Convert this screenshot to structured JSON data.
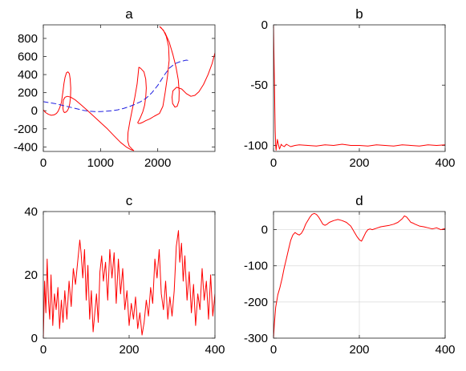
{
  "colors": {
    "red": "#ff0000",
    "blue": "#1f1fe0"
  },
  "chart_data": [
    {
      "type": "line",
      "title": "a",
      "xlim": [
        0,
        3000
      ],
      "ylim": [
        -450,
        950
      ],
      "xticks": [
        0,
        1000,
        2000
      ],
      "yticks": [
        -400,
        -200,
        0,
        200,
        400,
        600,
        800
      ],
      "grid": false,
      "series": [
        {
          "color": "red",
          "style": "solid",
          "x": [
            0,
            40,
            90,
            140,
            190,
            230,
            260,
            290,
            315,
            330,
            345,
            360,
            380,
            405,
            430,
            455,
            470,
            480,
            475,
            462,
            445,
            420,
            395,
            372,
            355,
            345,
            342,
            350,
            380,
            420,
            480,
            560,
            650,
            760,
            880,
            1000,
            1120,
            1240,
            1350,
            1450,
            1530,
            1580,
            1560,
            1500,
            1475,
            1480,
            1510,
            1550,
            1600,
            1640,
            1660,
            1670,
            1700,
            1760,
            1790,
            1800,
            1790,
            1770,
            1740,
            1700,
            1670,
            1650,
            1660,
            1690,
            1730,
            1790,
            1860,
            1940,
            2030,
            2090,
            2130,
            2170,
            2200,
            2190,
            2150,
            2100,
            2050,
            2035,
            2065,
            2130,
            2200,
            2265,
            2320,
            2360,
            2375,
            2370,
            2340,
            2300,
            2260,
            2250,
            2265,
            2330,
            2420,
            2500,
            2580,
            2650,
            2720,
            2800,
            2880,
            2950,
            3000
          ],
          "y": [
            10,
            -20,
            -40,
            -50,
            -45,
            -30,
            -5,
            40,
            90,
            150,
            220,
            300,
            370,
            420,
            430,
            410,
            350,
            250,
            150,
            80,
            30,
            0,
            -15,
            -20,
            -10,
            20,
            70,
            120,
            150,
            160,
            150,
            120,
            70,
            10,
            -60,
            -130,
            -200,
            -280,
            -350,
            -400,
            -430,
            -440,
            -430,
            -390,
            -330,
            -240,
            -130,
            0,
            150,
            300,
            420,
            480,
            470,
            430,
            350,
            250,
            150,
            60,
            -10,
            -70,
            -110,
            -130,
            -140,
            -140,
            -130,
            -110,
            -90,
            -60,
            -30,
            50,
            200,
            380,
            560,
            710,
            820,
            890,
            920,
            930,
            915,
            860,
            760,
            620,
            480,
            340,
            210,
            110,
            50,
            40,
            80,
            150,
            220,
            260,
            240,
            190,
            160,
            170,
            210,
            290,
            400,
            520,
            640
          ]
        },
        {
          "color": "blue",
          "style": "dashed",
          "x": [
            0,
            100,
            200,
            300,
            400,
            500,
            600,
            700,
            800,
            900,
            1000,
            1100,
            1200,
            1300,
            1400,
            1500,
            1600,
            1700,
            1800,
            1900,
            2000,
            2100,
            2200,
            2300,
            2400,
            2500,
            2550
          ],
          "y": [
            100,
            90,
            80,
            65,
            50,
            35,
            20,
            5,
            -5,
            -10,
            -10,
            -5,
            0,
            10,
            25,
            45,
            70,
            100,
            140,
            200,
            280,
            380,
            470,
            520,
            545,
            560,
            555
          ]
        }
      ]
    },
    {
      "type": "line",
      "title": "b",
      "xlim": [
        0,
        400
      ],
      "ylim": [
        -105,
        0
      ],
      "xticks": [
        0,
        200,
        400
      ],
      "yticks": [
        0,
        -50,
        -100
      ],
      "grid": false,
      "series": [
        {
          "color": "red",
          "style": "solid",
          "x": [
            0,
            1,
            2,
            3,
            4,
            5,
            6,
            7,
            8,
            9,
            10,
            12,
            14,
            16,
            18,
            20,
            25,
            30,
            35,
            40,
            50,
            60,
            80,
            100,
            120,
            140,
            160,
            180,
            200,
            220,
            240,
            260,
            280,
            300,
            320,
            340,
            360,
            380,
            400
          ],
          "y": [
            0,
            -22,
            -45,
            -68,
            -88,
            -100,
            -104,
            -101,
            -98,
            -95,
            -97,
            -100,
            -103,
            -101,
            -99,
            -100,
            -101,
            -99,
            -100,
            -101,
            -100,
            -99.5,
            -100,
            -100.5,
            -99.5,
            -100,
            -99,
            -100,
            -100,
            -100.5,
            -99.5,
            -100,
            -100.5,
            -99.5,
            -100,
            -100.5,
            -99.5,
            -100,
            -99.5
          ]
        }
      ]
    },
    {
      "type": "line",
      "title": "c",
      "xlim": [
        0,
        400
      ],
      "ylim": [
        0,
        40
      ],
      "xticks": [
        0,
        200,
        400
      ],
      "yticks": [
        0,
        20,
        40
      ],
      "grid": false,
      "series": [
        {
          "color": "red",
          "style": "solid",
          "x": [
            0,
            3,
            6,
            9,
            12,
            15,
            18,
            22,
            26,
            30,
            34,
            38,
            42,
            46,
            50,
            55,
            60,
            65,
            70,
            75,
            80,
            85,
            88,
            92,
            96,
            100,
            104,
            108,
            112,
            116,
            120,
            124,
            128,
            132,
            136,
            140,
            145,
            150,
            155,
            160,
            165,
            170,
            175,
            180,
            185,
            190,
            195,
            200,
            205,
            210,
            215,
            220,
            225,
            230,
            235,
            240,
            245,
            250,
            255,
            260,
            265,
            270,
            275,
            280,
            285,
            290,
            295,
            300,
            305,
            310,
            315,
            318,
            322,
            326,
            330,
            335,
            340,
            345,
            350,
            355,
            360,
            365,
            370,
            375,
            380,
            385,
            390,
            395,
            400
          ],
          "y": [
            0,
            18,
            8,
            25,
            12,
            6,
            20,
            4,
            14,
            9,
            16,
            3,
            12,
            5,
            15,
            6,
            18,
            10,
            22,
            17,
            24,
            31,
            27,
            19,
            28,
            12,
            23,
            6,
            15,
            2,
            8,
            14,
            5,
            21,
            26,
            18,
            24,
            12,
            28,
            19,
            27,
            11,
            25,
            14,
            22,
            9,
            15,
            4,
            11,
            6,
            13,
            3,
            8,
            1,
            5,
            12,
            7,
            16,
            11,
            25,
            19,
            28,
            14,
            9,
            18,
            6,
            13,
            7,
            15,
            29,
            34,
            24,
            30,
            18,
            26,
            12,
            21,
            8,
            17,
            4,
            14,
            9,
            22,
            12,
            18,
            6,
            20,
            7,
            14
          ]
        }
      ]
    },
    {
      "type": "line",
      "title": "d",
      "xlim": [
        0,
        400
      ],
      "ylim": [
        -300,
        50
      ],
      "xticks": [
        0,
        200,
        400
      ],
      "yticks": [
        -300,
        -200,
        -100,
        0
      ],
      "grid": true,
      "series": [
        {
          "color": "red",
          "style": "solid",
          "x": [
            0,
            2,
            5,
            10,
            15,
            20,
            25,
            30,
            35,
            40,
            45,
            50,
            55,
            60,
            65,
            70,
            75,
            80,
            85,
            90,
            95,
            100,
            105,
            110,
            115,
            120,
            125,
            130,
            140,
            150,
            160,
            170,
            180,
            185,
            190,
            195,
            200,
            205,
            210,
            215,
            220,
            225,
            230,
            240,
            250,
            260,
            270,
            280,
            290,
            300,
            305,
            310,
            315,
            320,
            325,
            330,
            340,
            350,
            360,
            370,
            380,
            390,
            400
          ],
          "y": [
            -300,
            -260,
            -215,
            -180,
            -160,
            -135,
            -105,
            -80,
            -55,
            -30,
            -15,
            -8,
            -12,
            -15,
            -10,
            0,
            15,
            25,
            35,
            42,
            45,
            42,
            35,
            25,
            15,
            12,
            15,
            20,
            25,
            28,
            25,
            20,
            10,
            0,
            -10,
            -20,
            -28,
            -32,
            -20,
            -8,
            0,
            2,
            0,
            4,
            8,
            10,
            12,
            15,
            20,
            30,
            38,
            35,
            28,
            20,
            18,
            15,
            10,
            8,
            5,
            2,
            5,
            0,
            3
          ]
        }
      ]
    }
  ]
}
